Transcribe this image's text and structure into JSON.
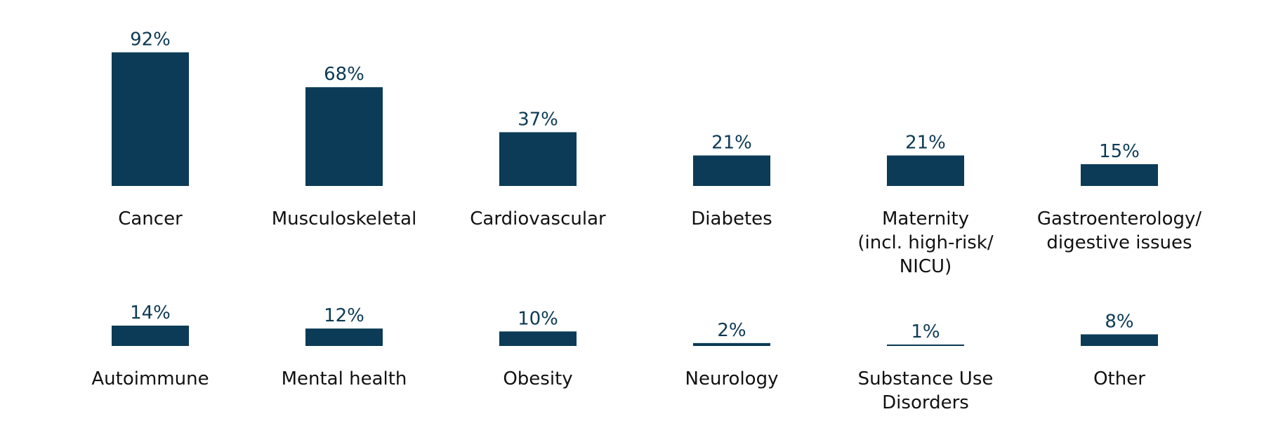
{
  "chart_data": {
    "type": "bar",
    "title": "",
    "xlabel": "",
    "ylabel": "",
    "ylim": [
      0,
      100
    ],
    "bar_color": "#0b3b56",
    "value_suffix": "%",
    "rows": [
      {
        "categories": [
          [
            "Cancer"
          ],
          [
            "Musculoskeletal"
          ],
          [
            "Cardiovascular"
          ],
          [
            "Diabetes"
          ],
          [
            "Maternity",
            "(incl. high-risk/",
            "NICU)"
          ],
          [
            "Gastroenterology/",
            "digestive issues"
          ]
        ],
        "values": [
          92,
          68,
          37,
          21,
          21,
          15
        ],
        "value_labels": [
          "92%",
          "68%",
          "37%",
          "21%",
          "21%",
          "15%"
        ]
      },
      {
        "categories": [
          [
            "Autoimmune"
          ],
          [
            "Mental health"
          ],
          [
            "Obesity"
          ],
          [
            "Neurology"
          ],
          [
            "Substance Use",
            "Disorders"
          ],
          [
            "Other"
          ]
        ],
        "values": [
          14,
          12,
          10,
          2,
          1,
          8
        ],
        "value_labels": [
          "14%",
          "12%",
          "10%",
          "2%",
          "1%",
          "8%"
        ]
      }
    ]
  }
}
